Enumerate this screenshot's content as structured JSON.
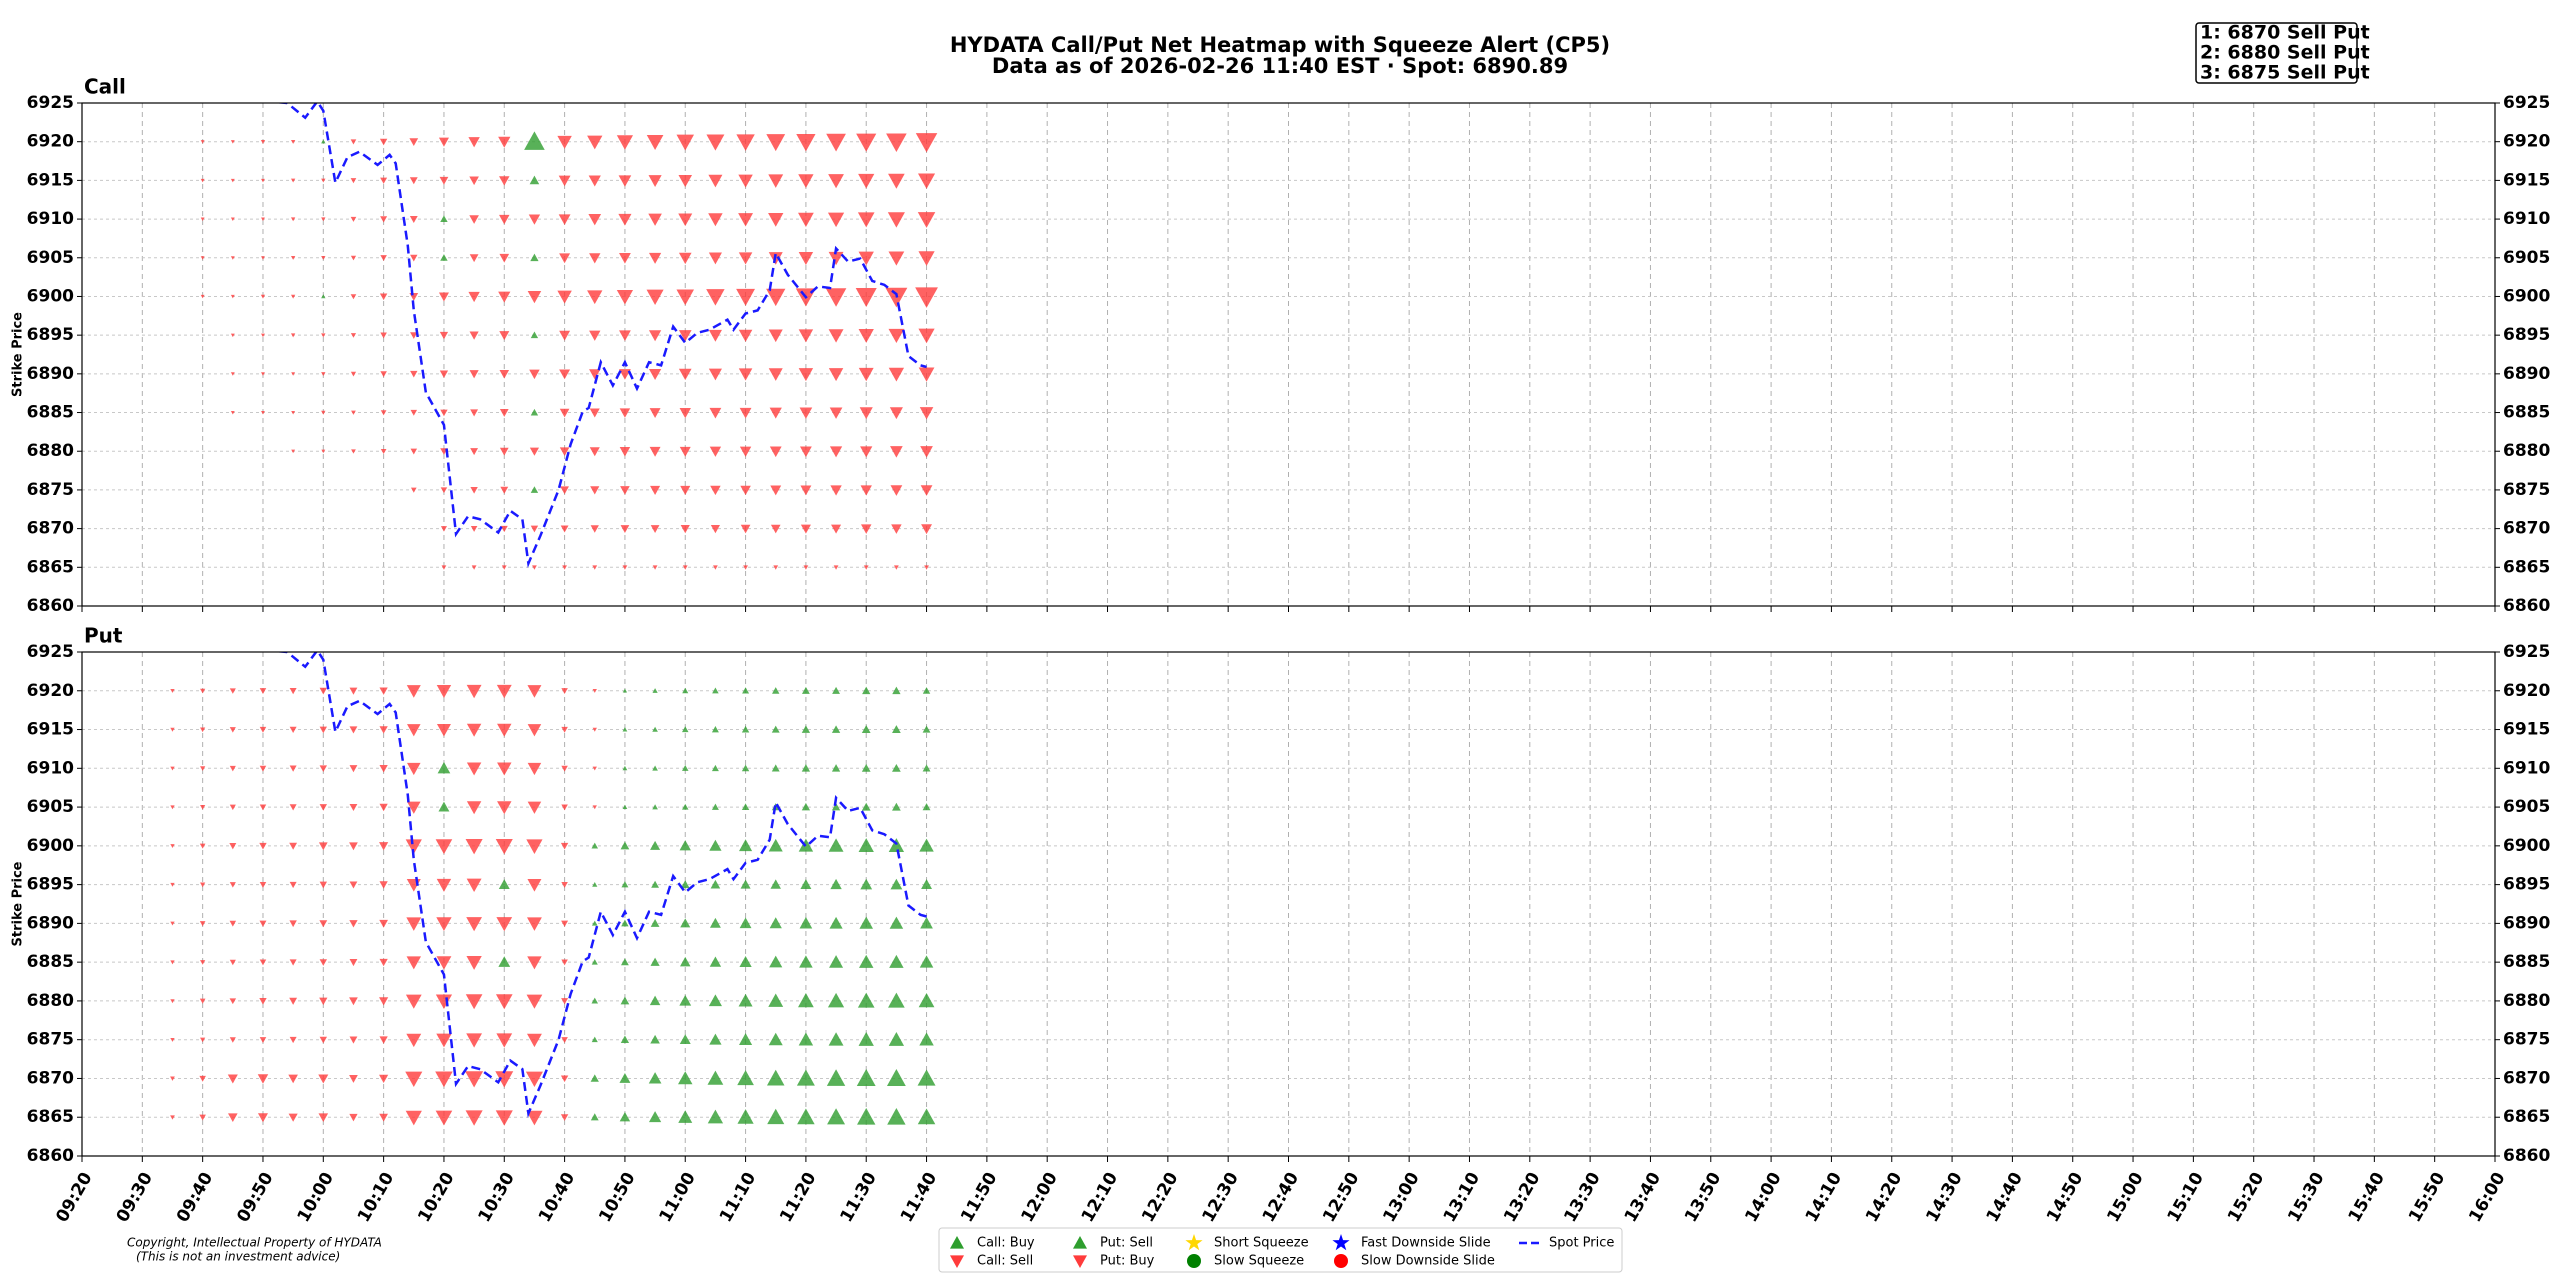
{
  "chart_data": {
    "type": "heatmap",
    "title": "HYDATA Call/Put Net Heatmap with Squeeze Alert (CP5)",
    "subtitle": "Data as of 2026-02-26 11:40 EST · Spot: 6890.89",
    "alerts": [
      "1: 6870 Sell Put",
      "2: 6880 Sell Put",
      "3: 6875 Sell Put"
    ],
    "copyright": [
      "Copyright, Intellectual Property of HYDATA",
      "(This is not an investment advice)"
    ],
    "ylabel": "Strike Price",
    "grid": true,
    "up_color": "#2e9e2e",
    "down_color": "#ff3b3b",
    "xlim": [
      "09:20",
      "16:00"
    ],
    "xticks": [
      "09:20",
      "09:30",
      "09:40",
      "09:50",
      "10:00",
      "10:10",
      "10:20",
      "10:30",
      "10:40",
      "10:50",
      "11:00",
      "11:10",
      "11:20",
      "11:30",
      "11:40",
      "11:50",
      "12:00",
      "12:10",
      "12:20",
      "12:30",
      "12:40",
      "12:50",
      "13:00",
      "13:10",
      "13:20",
      "13:30",
      "13:40",
      "13:50",
      "14:00",
      "14:10",
      "14:20",
      "14:30",
      "14:40",
      "14:50",
      "15:00",
      "15:10",
      "15:20",
      "15:30",
      "15:40",
      "15:50",
      "16:00"
    ],
    "ylim": [
      6860,
      6925
    ],
    "yticks": [
      6860,
      6865,
      6870,
      6875,
      6880,
      6885,
      6890,
      6895,
      6900,
      6905,
      6910,
      6915,
      6920,
      6925
    ],
    "times": [
      "09:35",
      "09:40",
      "09:45",
      "09:50",
      "09:55",
      "10:00",
      "10:05",
      "10:10",
      "10:15",
      "10:20",
      "10:25",
      "10:30",
      "10:35",
      "10:40",
      "10:45",
      "10:50",
      "10:55",
      "11:00",
      "11:05",
      "11:10",
      "11:15",
      "11:20",
      "11:25",
      "11:30",
      "11:35",
      "11:40"
    ],
    "strikes": [
      6920,
      6915,
      6910,
      6905,
      6900,
      6895,
      6890,
      6885,
      6880,
      6875,
      6870,
      6865
    ],
    "panels": [
      {
        "title": "Call",
        "values": [
          [
            null,
            -0.2,
            -0.2,
            -0.3,
            -0.3,
            0.3,
            -0.6,
            -1.0,
            -1.3,
            -1.6,
            -1.9,
            -2.1,
            4.0,
            -2.6,
            -2.8,
            -3.0,
            -3.1,
            -3.3,
            -3.4,
            -3.5,
            -3.6,
            -3.7,
            -3.8,
            -3.9,
            -4.0,
            -4.2
          ],
          [
            null,
            -0.2,
            -0.2,
            -0.2,
            -0.3,
            -0.3,
            -0.6,
            -0.9,
            -1.1,
            -1.3,
            -1.5,
            -1.7,
            1.5,
            -2.0,
            -2.1,
            -2.2,
            -2.3,
            -2.4,
            -2.5,
            -2.6,
            -2.7,
            -2.8,
            -2.9,
            -3.0,
            -3.1,
            -3.2
          ],
          [
            null,
            -0.2,
            -0.2,
            -0.2,
            -0.3,
            -0.3,
            -0.6,
            -0.9,
            -1.1,
            1.0,
            -1.5,
            -1.7,
            -1.9,
            -2.0,
            -2.2,
            -2.3,
            -2.4,
            -2.5,
            -2.6,
            -2.7,
            -2.8,
            -2.9,
            -3.0,
            -3.1,
            -3.2,
            -3.3
          ],
          [
            null,
            -0.2,
            -0.2,
            -0.2,
            -0.3,
            -0.3,
            -0.5,
            -0.8,
            -1.0,
            1.0,
            -1.3,
            -1.5,
            1.2,
            -1.8,
            -1.9,
            -2.0,
            -2.1,
            -2.2,
            -2.3,
            -2.4,
            -2.5,
            -2.6,
            -2.7,
            -2.8,
            -2.9,
            -3.0
          ],
          [
            null,
            -0.2,
            -0.2,
            -0.3,
            -0.3,
            0.3,
            -0.6,
            -1.0,
            -1.3,
            -1.6,
            -1.9,
            -2.1,
            -2.4,
            -2.6,
            -2.8,
            -3.0,
            -3.2,
            -3.3,
            -3.5,
            -3.6,
            -3.7,
            -3.9,
            -4.0,
            -4.1,
            -4.3,
            -4.5
          ],
          [
            null,
            null,
            -0.2,
            -0.2,
            -0.3,
            -0.3,
            -0.5,
            -0.8,
            -1.0,
            -1.2,
            -1.4,
            -1.6,
            1.0,
            -1.8,
            -1.9,
            -2.0,
            -2.1,
            -2.2,
            -2.3,
            -2.4,
            -2.5,
            -2.6,
            -2.7,
            -2.8,
            -2.9,
            -3.0
          ],
          [
            null,
            null,
            -0.2,
            -0.2,
            -0.2,
            -0.3,
            -0.5,
            -0.8,
            -1.0,
            -1.2,
            -1.4,
            -1.5,
            -1.7,
            -1.8,
            -1.9,
            -2.0,
            -2.1,
            -2.2,
            -2.3,
            -2.4,
            -2.5,
            -2.6,
            -2.6,
            -2.7,
            -2.8,
            -2.9
          ],
          [
            null,
            null,
            -0.2,
            -0.2,
            -0.2,
            -0.3,
            -0.4,
            -0.6,
            -0.8,
            -1.0,
            -1.1,
            -1.3,
            1.0,
            -1.5,
            -1.6,
            -1.7,
            -1.8,
            -1.9,
            -2.0,
            -2.0,
            -2.1,
            -2.2,
            -2.2,
            -2.3,
            -2.3,
            -2.4
          ],
          [
            null,
            null,
            null,
            null,
            -0.2,
            -0.2,
            -0.4,
            -0.6,
            -0.8,
            -1.0,
            -1.1,
            -1.3,
            -1.4,
            -1.5,
            -1.6,
            -1.7,
            -1.8,
            -1.8,
            -1.9,
            -1.9,
            -2.0,
            -2.0,
            -2.1,
            -2.1,
            -2.2,
            -2.2
          ],
          [
            null,
            null,
            null,
            null,
            null,
            null,
            null,
            null,
            -0.6,
            -0.8,
            -1.0,
            -1.1,
            1.0,
            -1.3,
            -1.4,
            -1.5,
            -1.6,
            -1.6,
            -1.7,
            -1.7,
            -1.8,
            -1.8,
            -1.9,
            -1.9,
            -2.0,
            -2.0
          ],
          [
            null,
            null,
            null,
            null,
            null,
            null,
            null,
            null,
            null,
            -0.7,
            -0.8,
            -0.9,
            -1.0,
            -1.1,
            -1.2,
            -1.3,
            -1.3,
            -1.4,
            -1.4,
            -1.5,
            -1.5,
            -1.6,
            -1.6,
            -1.7,
            -1.7,
            -1.8
          ],
          [
            null,
            null,
            null,
            null,
            null,
            null,
            null,
            null,
            null,
            -0.4,
            -0.4,
            -0.4,
            -0.4,
            -0.4,
            -0.4,
            -0.4,
            -0.4,
            -0.4,
            -0.4,
            -0.4,
            -0.4,
            -0.4,
            -0.4,
            -0.4,
            -0.4,
            -0.4
          ]
        ]
      },
      {
        "title": "Put",
        "values": [
          [
            -0.3,
            -0.5,
            -0.7,
            -0.8,
            -0.9,
            -1.0,
            -1.1,
            -1.2,
            -2.5,
            -2.6,
            -2.7,
            -2.7,
            -2.5,
            -0.8,
            -0.3,
            0.3,
            0.5,
            0.7,
            0.8,
            0.9,
            1.0,
            1.1,
            1.1,
            1.2,
            1.2,
            1.0
          ],
          [
            -0.3,
            -0.5,
            -0.7,
            -0.8,
            -0.9,
            -1.0,
            -1.1,
            -1.2,
            -2.4,
            -2.5,
            -2.6,
            -2.6,
            -2.4,
            -0.8,
            -0.3,
            0.4,
            0.6,
            0.8,
            0.9,
            1.0,
            1.1,
            1.2,
            1.2,
            1.3,
            1.3,
            1.1
          ],
          [
            -0.3,
            -0.5,
            -0.7,
            -0.8,
            -0.9,
            -1.0,
            -1.1,
            -1.2,
            -2.4,
            2.2,
            -2.6,
            -2.6,
            -2.4,
            -0.8,
            -0.3,
            0.4,
            0.6,
            0.8,
            0.9,
            1.0,
            1.1,
            1.2,
            1.2,
            1.3,
            1.3,
            1.1
          ],
          [
            -0.3,
            -0.5,
            -0.7,
            -0.8,
            -0.9,
            -1.0,
            -1.1,
            -1.2,
            -2.4,
            1.8,
            -2.6,
            -2.6,
            -2.4,
            -0.8,
            -0.3,
            0.4,
            0.6,
            0.8,
            0.9,
            1.0,
            1.1,
            1.2,
            1.2,
            1.3,
            1.3,
            1.1
          ],
          [
            -0.3,
            -0.6,
            -0.9,
            -1.0,
            -1.1,
            -1.3,
            -1.3,
            -1.4,
            -3.0,
            -3.1,
            -3.2,
            -3.2,
            -3.0,
            -1.0,
            0.8,
            1.3,
            1.6,
            1.9,
            2.1,
            2.3,
            2.5,
            2.6,
            2.7,
            2.8,
            2.8,
            2.6
          ],
          [
            -0.3,
            -0.5,
            -0.7,
            -0.8,
            -0.9,
            -1.0,
            -1.1,
            -1.2,
            -2.5,
            -2.6,
            -2.7,
            1.8,
            -2.5,
            -0.8,
            0.5,
            0.9,
            1.1,
            1.3,
            1.5,
            1.6,
            1.7,
            1.8,
            1.9,
            2.0,
            2.0,
            1.8
          ],
          [
            -0.3,
            -0.6,
            -0.8,
            -0.9,
            -1.0,
            -1.1,
            -1.2,
            -1.3,
            -2.7,
            -2.8,
            -2.9,
            -2.9,
            -2.7,
            -0.9,
            0.6,
            1.0,
            1.3,
            1.6,
            1.8,
            2.0,
            2.1,
            2.2,
            2.3,
            2.4,
            2.4,
            2.2
          ],
          [
            -0.3,
            -0.5,
            -0.7,
            -0.8,
            -0.9,
            -1.0,
            -1.1,
            -1.2,
            -2.6,
            -2.7,
            -2.8,
            2.0,
            -2.6,
            -0.8,
            0.7,
            1.1,
            1.4,
            1.7,
            1.9,
            2.1,
            2.3,
            2.4,
            2.5,
            2.6,
            2.6,
            2.4
          ],
          [
            -0.3,
            -0.6,
            -0.8,
            -1.0,
            -1.1,
            -1.2,
            -1.3,
            -1.4,
            -2.9,
            -3.0,
            -3.1,
            -3.1,
            -2.9,
            -0.9,
            0.8,
            1.3,
            1.7,
            2.0,
            2.3,
            2.5,
            2.7,
            2.9,
            3.0,
            3.1,
            3.1,
            2.9
          ],
          [
            -0.3,
            -0.5,
            -0.7,
            -0.8,
            -0.9,
            -1.0,
            -1.1,
            -1.2,
            -2.7,
            -2.8,
            -2.9,
            -2.9,
            -2.7,
            -0.8,
            0.7,
            1.2,
            1.5,
            1.8,
            2.1,
            2.3,
            2.5,
            2.6,
            2.7,
            2.8,
            2.8,
            2.6
          ],
          [
            -0.4,
            -0.8,
            -1.6,
            -1.7,
            -1.5,
            -1.6,
            -1.3,
            -1.4,
            -3.2,
            -3.3,
            -3.4,
            -3.4,
            -3.2,
            -1.0,
            1.2,
            1.8,
            2.2,
            2.6,
            2.9,
            3.1,
            3.3,
            3.4,
            3.5,
            3.6,
            3.6,
            3.4
          ],
          [
            -0.4,
            -0.8,
            -1.5,
            -1.6,
            -1.4,
            -1.5,
            -1.2,
            -1.3,
            -3.0,
            -3.1,
            -3.2,
            -3.2,
            -3.0,
            -1.0,
            1.1,
            1.7,
            2.1,
            2.5,
            2.8,
            3.0,
            3.2,
            3.3,
            3.4,
            3.5,
            3.5,
            3.3
          ]
        ]
      }
    ],
    "spot": {
      "name": "Spot Price",
      "color": "#1a1aff",
      "x": [
        "09:48",
        "09:54",
        "09:57",
        "09:59",
        "10:00",
        "10:02",
        "10:04",
        "10:06",
        "10:09",
        "10:11",
        "10:12",
        "10:14",
        "10:15",
        "10:17",
        "10:20",
        "10:22",
        "10:24",
        "10:26",
        "10:29",
        "10:31",
        "10:33",
        "10:34",
        "10:36",
        "10:39",
        "10:41",
        "10:43",
        "10:44",
        "10:46",
        "10:48",
        "10:50",
        "10:52",
        "10:54",
        "10:56",
        "10:58",
        "11:00",
        "11:02",
        "11:04",
        "11:07",
        "11:08",
        "11:10",
        "11:12",
        "11:14",
        "11:15",
        "11:17",
        "11:20",
        "11:22",
        "11:24",
        "11:25",
        "11:27",
        "11:29",
        "11:31",
        "11:33",
        "11:35",
        "11:37",
        "11:39",
        "11:40"
      ],
      "values": [
        6925.4,
        6925,
        6923.1,
        6925.2,
        6924,
        6914.7,
        6918,
        6918.7,
        6917,
        6918.3,
        6917.2,
        6906.6,
        6898.2,
        6887.6,
        6883.4,
        6869.3,
        6871.6,
        6871.2,
        6869.5,
        6872.3,
        6871.2,
        6865.5,
        6869.1,
        6875,
        6880.9,
        6885.1,
        6885.6,
        6891.5,
        6888.5,
        6891.5,
        6888.1,
        6891.5,
        6891.1,
        6896.1,
        6894,
        6895.3,
        6895.7,
        6897,
        6895.7,
        6897.8,
        6898.2,
        6900.8,
        6905.6,
        6902.8,
        6899.9,
        6901.3,
        6901.1,
        6906.2,
        6904.5,
        6904.9,
        6902,
        6901.5,
        6900.3,
        6892.3,
        6891.1,
        6890.89
      ]
    },
    "legend": [
      {
        "name": "Call: Buy",
        "color": "#2e9e2e",
        "marker": "triangle-up"
      },
      {
        "name": "Call: Sell",
        "color": "#ff3b3b",
        "marker": "triangle-down"
      },
      {
        "name": "Put: Sell",
        "color": "#2e9e2e",
        "marker": "triangle-up"
      },
      {
        "name": "Put: Buy",
        "color": "#ff3b3b",
        "marker": "triangle-down"
      },
      {
        "name": "Short Squeeze",
        "color": "#ffd700",
        "marker": "star"
      },
      {
        "name": "Slow Squeeze",
        "color": "#008000",
        "marker": "circle"
      },
      {
        "name": "Fast Downside Slide",
        "color": "#0000ff",
        "marker": "star"
      },
      {
        "name": "Slow Downside Slide",
        "color": "#ff0000",
        "marker": "circle"
      },
      {
        "name": "Spot Price",
        "color": "#1a1aff",
        "marker": "dashed-line"
      }
    ]
  }
}
